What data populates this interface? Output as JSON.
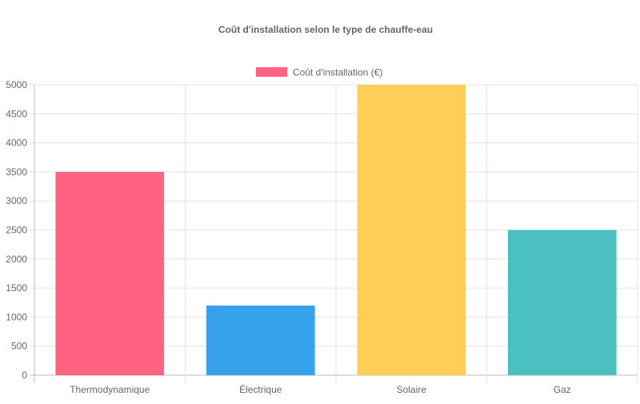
{
  "chart_data": {
    "type": "bar",
    "title": "Coût d'installation selon le type de chauffe-eau",
    "categories": [
      "Thermodynamique",
      "Électrique",
      "Solaire",
      "Gaz"
    ],
    "series": [
      {
        "name": "Coût d'installation (€)",
        "values": [
          3500,
          1200,
          5000,
          2500
        ],
        "colors": [
          "#ff6384",
          "#36a2eb",
          "#ffce56",
          "#4bc0c0"
        ]
      }
    ],
    "xlabel": "",
    "ylabel": "",
    "ylim": [
      0,
      5000
    ],
    "yticks": [
      0,
      500,
      1000,
      1500,
      2000,
      2500,
      3000,
      3500,
      4000,
      4500,
      5000
    ],
    "grid": true,
    "legend": "top"
  }
}
